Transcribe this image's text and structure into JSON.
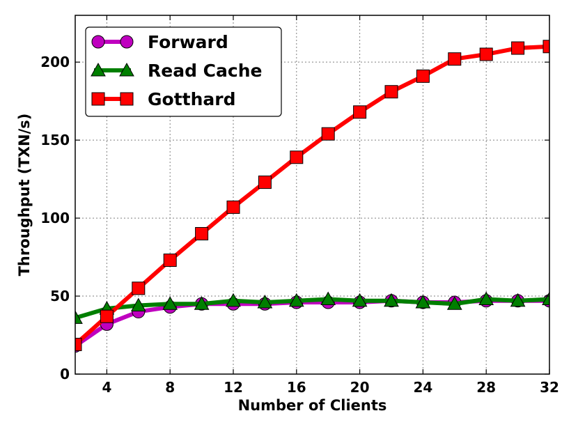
{
  "chart_data": {
    "type": "line",
    "title": "",
    "xlabel": "Number of Clients",
    "ylabel": "Throughput (TXN/s)",
    "xlim": [
      2,
      32
    ],
    "ylim": [
      0,
      230
    ],
    "xticks": [
      4,
      8,
      12,
      16,
      20,
      24,
      28,
      32
    ],
    "yticks": [
      0,
      50,
      100,
      150,
      200
    ],
    "grid": true,
    "legend_position": "top-left",
    "x": [
      2,
      4,
      6,
      8,
      10,
      12,
      14,
      16,
      18,
      20,
      22,
      24,
      26,
      28,
      30,
      32
    ],
    "series": [
      {
        "name": "Forward",
        "color": "#bf00bf",
        "marker": "circle",
        "values": [
          18,
          32,
          40,
          43,
          45,
          45,
          45,
          46,
          46,
          46,
          47,
          46,
          46,
          47,
          47,
          47
        ]
      },
      {
        "name": "Read Cache",
        "color": "#007f00",
        "marker": "triangle",
        "values": [
          36,
          42,
          44,
          45,
          45,
          47,
          46,
          47,
          48,
          47,
          47,
          46,
          45,
          48,
          47,
          48
        ]
      },
      {
        "name": "Gotthard",
        "color": "#ff0000",
        "marker": "square",
        "values": [
          19,
          37,
          55,
          73,
          90,
          107,
          123,
          139,
          154,
          168,
          181,
          191,
          202,
          205,
          209,
          210
        ]
      }
    ]
  }
}
